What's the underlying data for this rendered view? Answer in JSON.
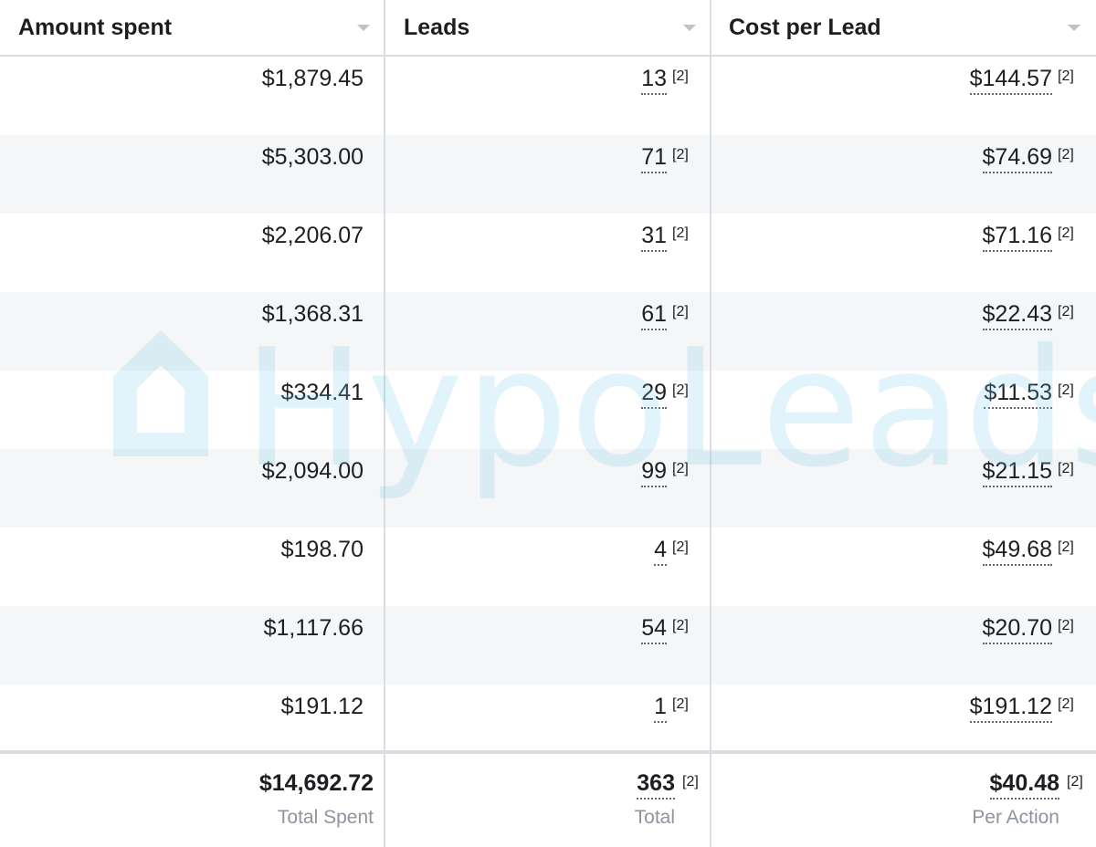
{
  "columns": [
    {
      "label": "Amount spent",
      "sort_icon": "sort-caret-down-icon"
    },
    {
      "label": "Leads",
      "sort_icon": "sort-caret-down-icon"
    },
    {
      "label": "Cost per Lead",
      "sort_icon": "sort-caret-down-icon"
    }
  ],
  "rows": [
    {
      "amount": "$1,879.45",
      "leads": "13",
      "leads_note": "[2]",
      "cpl": "$144.57",
      "cpl_note": "[2]"
    },
    {
      "amount": "$5,303.00",
      "leads": "71",
      "leads_note": "[2]",
      "cpl": "$74.69",
      "cpl_note": "[2]"
    },
    {
      "amount": "$2,206.07",
      "leads": "31",
      "leads_note": "[2]",
      "cpl": "$71.16",
      "cpl_note": "[2]"
    },
    {
      "amount": "$1,368.31",
      "leads": "61",
      "leads_note": "[2]",
      "cpl": "$22.43",
      "cpl_note": "[2]"
    },
    {
      "amount": "$334.41",
      "leads": "29",
      "leads_note": "[2]",
      "cpl": "$11.53",
      "cpl_note": "[2]"
    },
    {
      "amount": "$2,094.00",
      "leads": "99",
      "leads_note": "[2]",
      "cpl": "$21.15",
      "cpl_note": "[2]"
    },
    {
      "amount": "$198.70",
      "leads": "4",
      "leads_note": "[2]",
      "cpl": "$49.68",
      "cpl_note": "[2]"
    },
    {
      "amount": "$1,117.66",
      "leads": "54",
      "leads_note": "[2]",
      "cpl": "$20.70",
      "cpl_note": "[2]"
    },
    {
      "amount": "$191.12",
      "leads": "1",
      "leads_note": "[2]",
      "cpl": "$191.12",
      "cpl_note": "[2]"
    }
  ],
  "totals": {
    "amount": "$14,692.72",
    "amount_label": "Total Spent",
    "leads": "363",
    "leads_note": "[2]",
    "leads_label": "Total",
    "cpl": "$40.48",
    "cpl_note": "[2]",
    "cpl_label": "Per Action"
  },
  "watermark": {
    "text": "HypoLeads",
    "icon": "house-logo-icon",
    "color": "#78c8eb"
  },
  "colors": {
    "alt_row": "#f5f6f7",
    "divider": "#dadde1",
    "muted_text": "#8d949e"
  }
}
